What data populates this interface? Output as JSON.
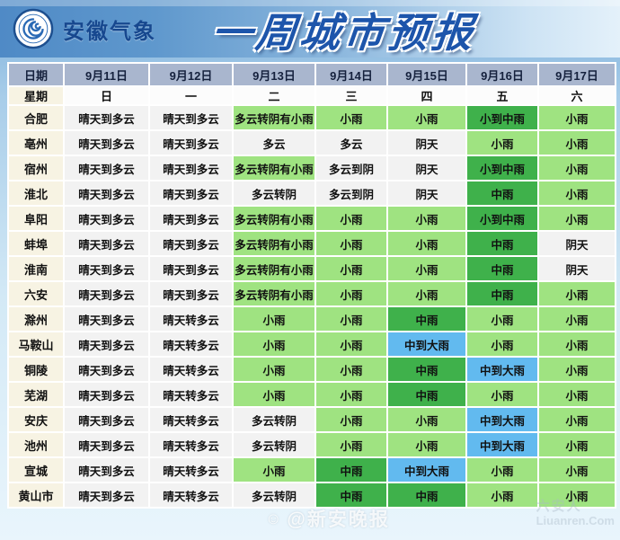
{
  "banner": {
    "org_name": "安徽气象",
    "title": "一周城市预报"
  },
  "table": {
    "corner_label": "日期",
    "week_label": "星期",
    "dates": [
      "9月11日",
      "9月12日",
      "9月13日",
      "9月14日",
      "9月15日",
      "9月16日",
      "9月17日"
    ],
    "weekdays": [
      "日",
      "一",
      "二",
      "三",
      "四",
      "五",
      "六"
    ],
    "colors": {
      "plain": "#f2f2f2",
      "light_green": "#9fe381",
      "dark_green": "#3fb14b",
      "blue": "#62baef",
      "date_header": "#a9b6ce",
      "city_cream": "#f7f3e3",
      "title_blue": "#1d55ab"
    },
    "rows": [
      {
        "city": "合肥",
        "cells": [
          [
            "晴天到多云",
            "plain"
          ],
          [
            "晴天到多云",
            "plain"
          ],
          [
            "多云转阴有小雨",
            "light_green"
          ],
          [
            "小雨",
            "light_green"
          ],
          [
            "小雨",
            "light_green"
          ],
          [
            "小到中雨",
            "dark_green"
          ],
          [
            "小雨",
            "light_green"
          ]
        ]
      },
      {
        "city": "亳州",
        "cells": [
          [
            "晴天到多云",
            "plain"
          ],
          [
            "晴天到多云",
            "plain"
          ],
          [
            "多云",
            "plain"
          ],
          [
            "多云",
            "plain"
          ],
          [
            "阴天",
            "plain"
          ],
          [
            "小雨",
            "light_green"
          ],
          [
            "小雨",
            "light_green"
          ]
        ]
      },
      {
        "city": "宿州",
        "cells": [
          [
            "晴天到多云",
            "plain"
          ],
          [
            "晴天到多云",
            "plain"
          ],
          [
            "多云转阴有小雨",
            "light_green"
          ],
          [
            "多云到阴",
            "plain"
          ],
          [
            "阴天",
            "plain"
          ],
          [
            "小到中雨",
            "dark_green"
          ],
          [
            "小雨",
            "light_green"
          ]
        ]
      },
      {
        "city": "淮北",
        "cells": [
          [
            "晴天到多云",
            "plain"
          ],
          [
            "晴天到多云",
            "plain"
          ],
          [
            "多云转阴",
            "plain"
          ],
          [
            "多云到阴",
            "plain"
          ],
          [
            "阴天",
            "plain"
          ],
          [
            "中雨",
            "dark_green"
          ],
          [
            "小雨",
            "light_green"
          ]
        ]
      },
      {
        "city": "阜阳",
        "cells": [
          [
            "晴天到多云",
            "plain"
          ],
          [
            "晴天到多云",
            "plain"
          ],
          [
            "多云转阴有小雨",
            "light_green"
          ],
          [
            "小雨",
            "light_green"
          ],
          [
            "小雨",
            "light_green"
          ],
          [
            "小到中雨",
            "dark_green"
          ],
          [
            "小雨",
            "light_green"
          ]
        ]
      },
      {
        "city": "蚌埠",
        "cells": [
          [
            "晴天到多云",
            "plain"
          ],
          [
            "晴天到多云",
            "plain"
          ],
          [
            "多云转阴有小雨",
            "light_green"
          ],
          [
            "小雨",
            "light_green"
          ],
          [
            "小雨",
            "light_green"
          ],
          [
            "中雨",
            "dark_green"
          ],
          [
            "阴天",
            "plain"
          ]
        ]
      },
      {
        "city": "淮南",
        "cells": [
          [
            "晴天到多云",
            "plain"
          ],
          [
            "晴天到多云",
            "plain"
          ],
          [
            "多云转阴有小雨",
            "light_green"
          ],
          [
            "小雨",
            "light_green"
          ],
          [
            "小雨",
            "light_green"
          ],
          [
            "中雨",
            "dark_green"
          ],
          [
            "阴天",
            "plain"
          ]
        ]
      },
      {
        "city": "六安",
        "cells": [
          [
            "晴天到多云",
            "plain"
          ],
          [
            "晴天到多云",
            "plain"
          ],
          [
            "多云转阴有小雨",
            "light_green"
          ],
          [
            "小雨",
            "light_green"
          ],
          [
            "小雨",
            "light_green"
          ],
          [
            "中雨",
            "dark_green"
          ],
          [
            "小雨",
            "light_green"
          ]
        ]
      },
      {
        "city": "滁州",
        "cells": [
          [
            "晴天到多云",
            "plain"
          ],
          [
            "晴天转多云",
            "plain"
          ],
          [
            "小雨",
            "light_green"
          ],
          [
            "小雨",
            "light_green"
          ],
          [
            "中雨",
            "dark_green"
          ],
          [
            "小雨",
            "light_green"
          ],
          [
            "小雨",
            "light_green"
          ]
        ]
      },
      {
        "city": "马鞍山",
        "cells": [
          [
            "晴天到多云",
            "plain"
          ],
          [
            "晴天转多云",
            "plain"
          ],
          [
            "小雨",
            "light_green"
          ],
          [
            "小雨",
            "light_green"
          ],
          [
            "中到大雨",
            "blue"
          ],
          [
            "小雨",
            "light_green"
          ],
          [
            "小雨",
            "light_green"
          ]
        ]
      },
      {
        "city": "铜陵",
        "cells": [
          [
            "晴天到多云",
            "plain"
          ],
          [
            "晴天转多云",
            "plain"
          ],
          [
            "小雨",
            "light_green"
          ],
          [
            "小雨",
            "light_green"
          ],
          [
            "中雨",
            "dark_green"
          ],
          [
            "中到大雨",
            "blue"
          ],
          [
            "小雨",
            "light_green"
          ]
        ]
      },
      {
        "city": "芜湖",
        "cells": [
          [
            "晴天到多云",
            "plain"
          ],
          [
            "晴天转多云",
            "plain"
          ],
          [
            "小雨",
            "light_green"
          ],
          [
            "小雨",
            "light_green"
          ],
          [
            "中雨",
            "dark_green"
          ],
          [
            "小雨",
            "light_green"
          ],
          [
            "小雨",
            "light_green"
          ]
        ]
      },
      {
        "city": "安庆",
        "cells": [
          [
            "晴天到多云",
            "plain"
          ],
          [
            "晴天转多云",
            "plain"
          ],
          [
            "多云转阴",
            "plain"
          ],
          [
            "小雨",
            "light_green"
          ],
          [
            "小雨",
            "light_green"
          ],
          [
            "中到大雨",
            "blue"
          ],
          [
            "小雨",
            "light_green"
          ]
        ]
      },
      {
        "city": "池州",
        "cells": [
          [
            "晴天到多云",
            "plain"
          ],
          [
            "晴天转多云",
            "plain"
          ],
          [
            "多云转阴",
            "plain"
          ],
          [
            "小雨",
            "light_green"
          ],
          [
            "小雨",
            "light_green"
          ],
          [
            "中到大雨",
            "blue"
          ],
          [
            "小雨",
            "light_green"
          ]
        ]
      },
      {
        "city": "宣城",
        "cells": [
          [
            "晴天到多云",
            "plain"
          ],
          [
            "晴天转多云",
            "plain"
          ],
          [
            "小雨",
            "light_green"
          ],
          [
            "中雨",
            "dark_green"
          ],
          [
            "中到大雨",
            "blue"
          ],
          [
            "小雨",
            "light_green"
          ],
          [
            "小雨",
            "light_green"
          ]
        ]
      },
      {
        "city": "黄山市",
        "cells": [
          [
            "晴天到多云",
            "plain"
          ],
          [
            "晴天转多云",
            "plain"
          ],
          [
            "多云转阴",
            "plain"
          ],
          [
            "中雨",
            "dark_green"
          ],
          [
            "中雨",
            "dark_green"
          ],
          [
            "小雨",
            "light_green"
          ],
          [
            "小雨",
            "light_green"
          ]
        ]
      }
    ]
  },
  "watermarks": {
    "bottom": "@新安晚报",
    "bottom_icon": "☺",
    "right_line1": "六安人",
    "right_line2": "Liuanren.Com"
  }
}
